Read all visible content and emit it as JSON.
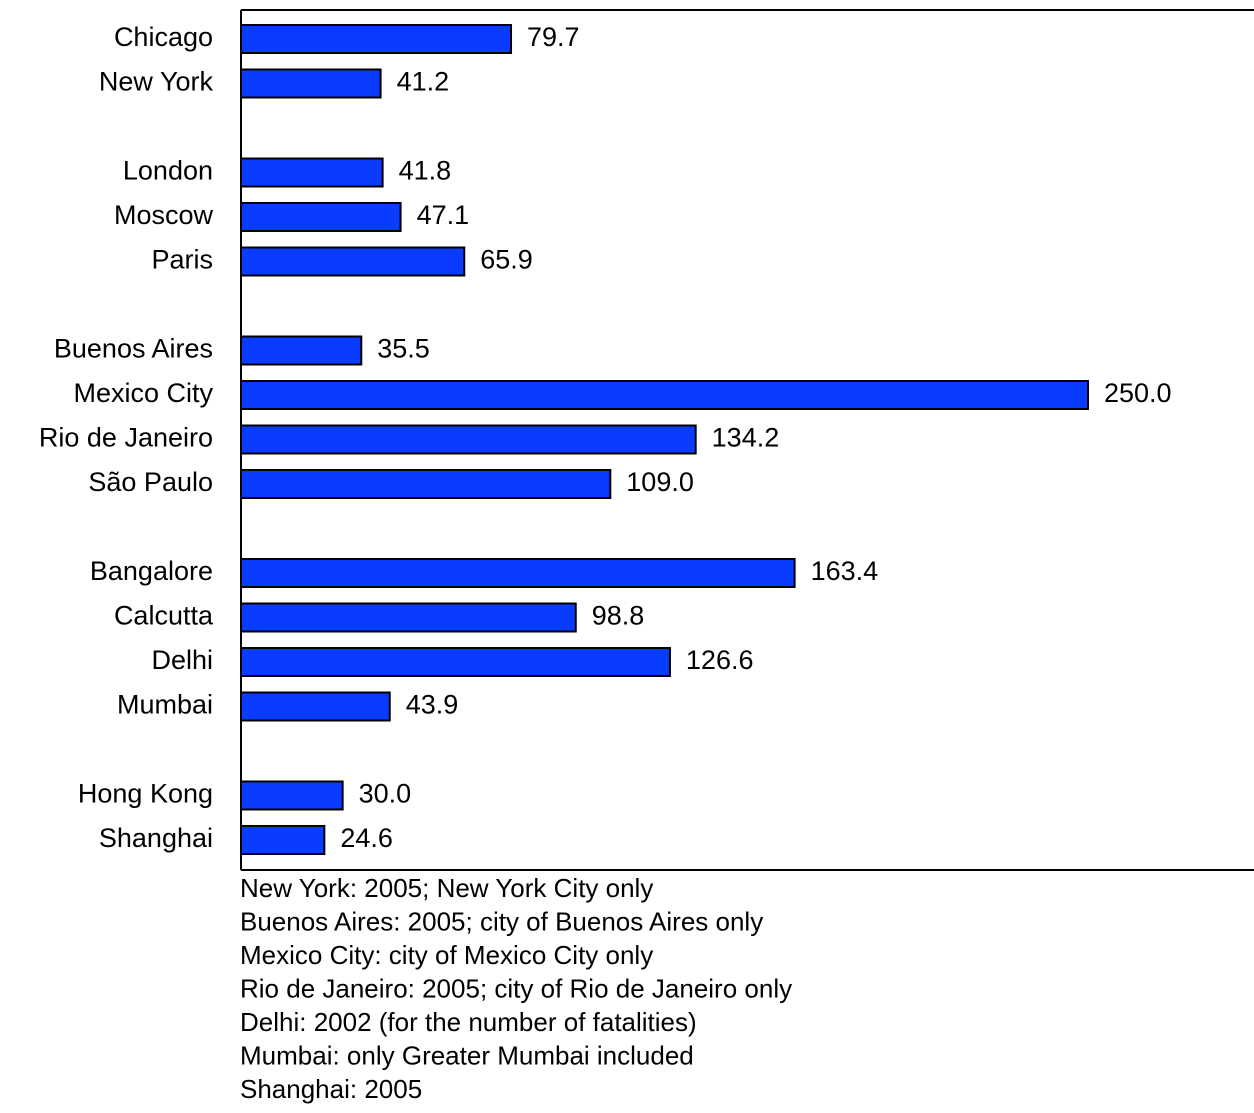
{
  "chart_data": {
    "type": "bar",
    "orientation": "horizontal",
    "categories": [
      "Chicago",
      "New York",
      null,
      "London",
      "Moscow",
      "Paris",
      null,
      "Buenos Aires",
      "Mexico City",
      "Rio de Janeiro",
      "São Paulo",
      null,
      "Bangalore",
      "Calcutta",
      "Delhi",
      "Mumbai",
      null,
      "Hong Kong",
      "Shanghai"
    ],
    "values": [
      79.7,
      41.2,
      null,
      41.8,
      47.1,
      65.9,
      null,
      35.5,
      250,
      134.2,
      109,
      null,
      163.4,
      98.8,
      126.6,
      43.9,
      null,
      30,
      24.6
    ],
    "value_labels": [
      "79.7",
      "41.2",
      null,
      "41.8",
      "47.1",
      "65.9",
      null,
      "35.5",
      "250.0",
      "134.2",
      "109.0",
      null,
      "163.4",
      "98.8",
      "126.6",
      "43.9",
      null,
      "30.0",
      "24.6"
    ],
    "color": "#0a3cff",
    "notes": [
      "New York: 2005; New York City only",
      "Buenos Aires: 2005; city of Buenos Aires only",
      "Mexico City: city of Mexico City only",
      "Rio de Janeiro: 2005; city of Rio de Janeiro only",
      "Delhi: 2002 (for the number of fatalities)",
      "Mumbai: only Greater Mumbai included",
      "Shanghai: 2005"
    ]
  }
}
